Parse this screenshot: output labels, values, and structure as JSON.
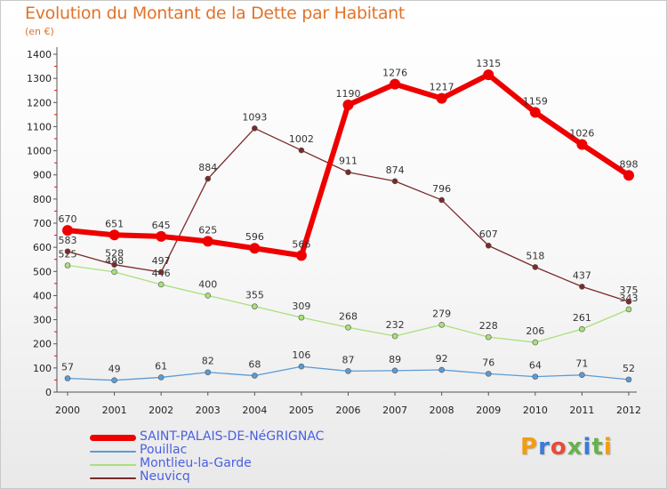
{
  "chart_data": {
    "type": "line",
    "title": "Evolution du Montant de la Dette par Habitant",
    "subtitle": "(en €)",
    "x": [
      "2000",
      "2001",
      "2002",
      "2003",
      "2004",
      "2005",
      "2006",
      "2007",
      "2008",
      "2009",
      "2010",
      "2011",
      "2012"
    ],
    "ylim": [
      0,
      1400
    ],
    "yticks": [
      0,
      100,
      200,
      300,
      400,
      500,
      600,
      700,
      800,
      900,
      1000,
      1100,
      1200,
      1300,
      1400
    ],
    "grid": false,
    "legend_position": "bottom-left",
    "series": [
      {
        "name": "Pouillac",
        "color": "#5b9bd5",
        "values": [
          57,
          49,
          61,
          82,
          68,
          106,
          87,
          89,
          92,
          76,
          64,
          71,
          52
        ]
      },
      {
        "name": "Montlieu-la-Garde",
        "color": "#a8e07a",
        "values": [
          525,
          498,
          446,
          400,
          355,
          309,
          268,
          232,
          279,
          228,
          206,
          261,
          343
        ]
      },
      {
        "name": "Neuvicq",
        "color": "#7a2a2a",
        "values": [
          583,
          528,
          497,
          884,
          1093,
          1002,
          911,
          874,
          796,
          607,
          518,
          437,
          375
        ]
      },
      {
        "name": "SAINT-PALAIS-DE-NéGRIGNAC",
        "color": "#ee0000",
        "values": [
          670,
          651,
          645,
          625,
          596,
          566,
          1190,
          1276,
          1217,
          1315,
          1159,
          1026,
          898
        ]
      }
    ],
    "legend_order": [
      "SAINT-PALAIS-DE-NéGRIGNAC",
      "Pouillac",
      "Montlieu-la-Garde",
      "Neuvicq"
    ]
  },
  "brand": {
    "text": "Proxiti",
    "letter_colors": [
      "#f39c12",
      "#3a7bd5",
      "#e74c3c",
      "#6ab04c",
      "#3a7bd5",
      "#6ab04c",
      "#f39c12"
    ]
  }
}
